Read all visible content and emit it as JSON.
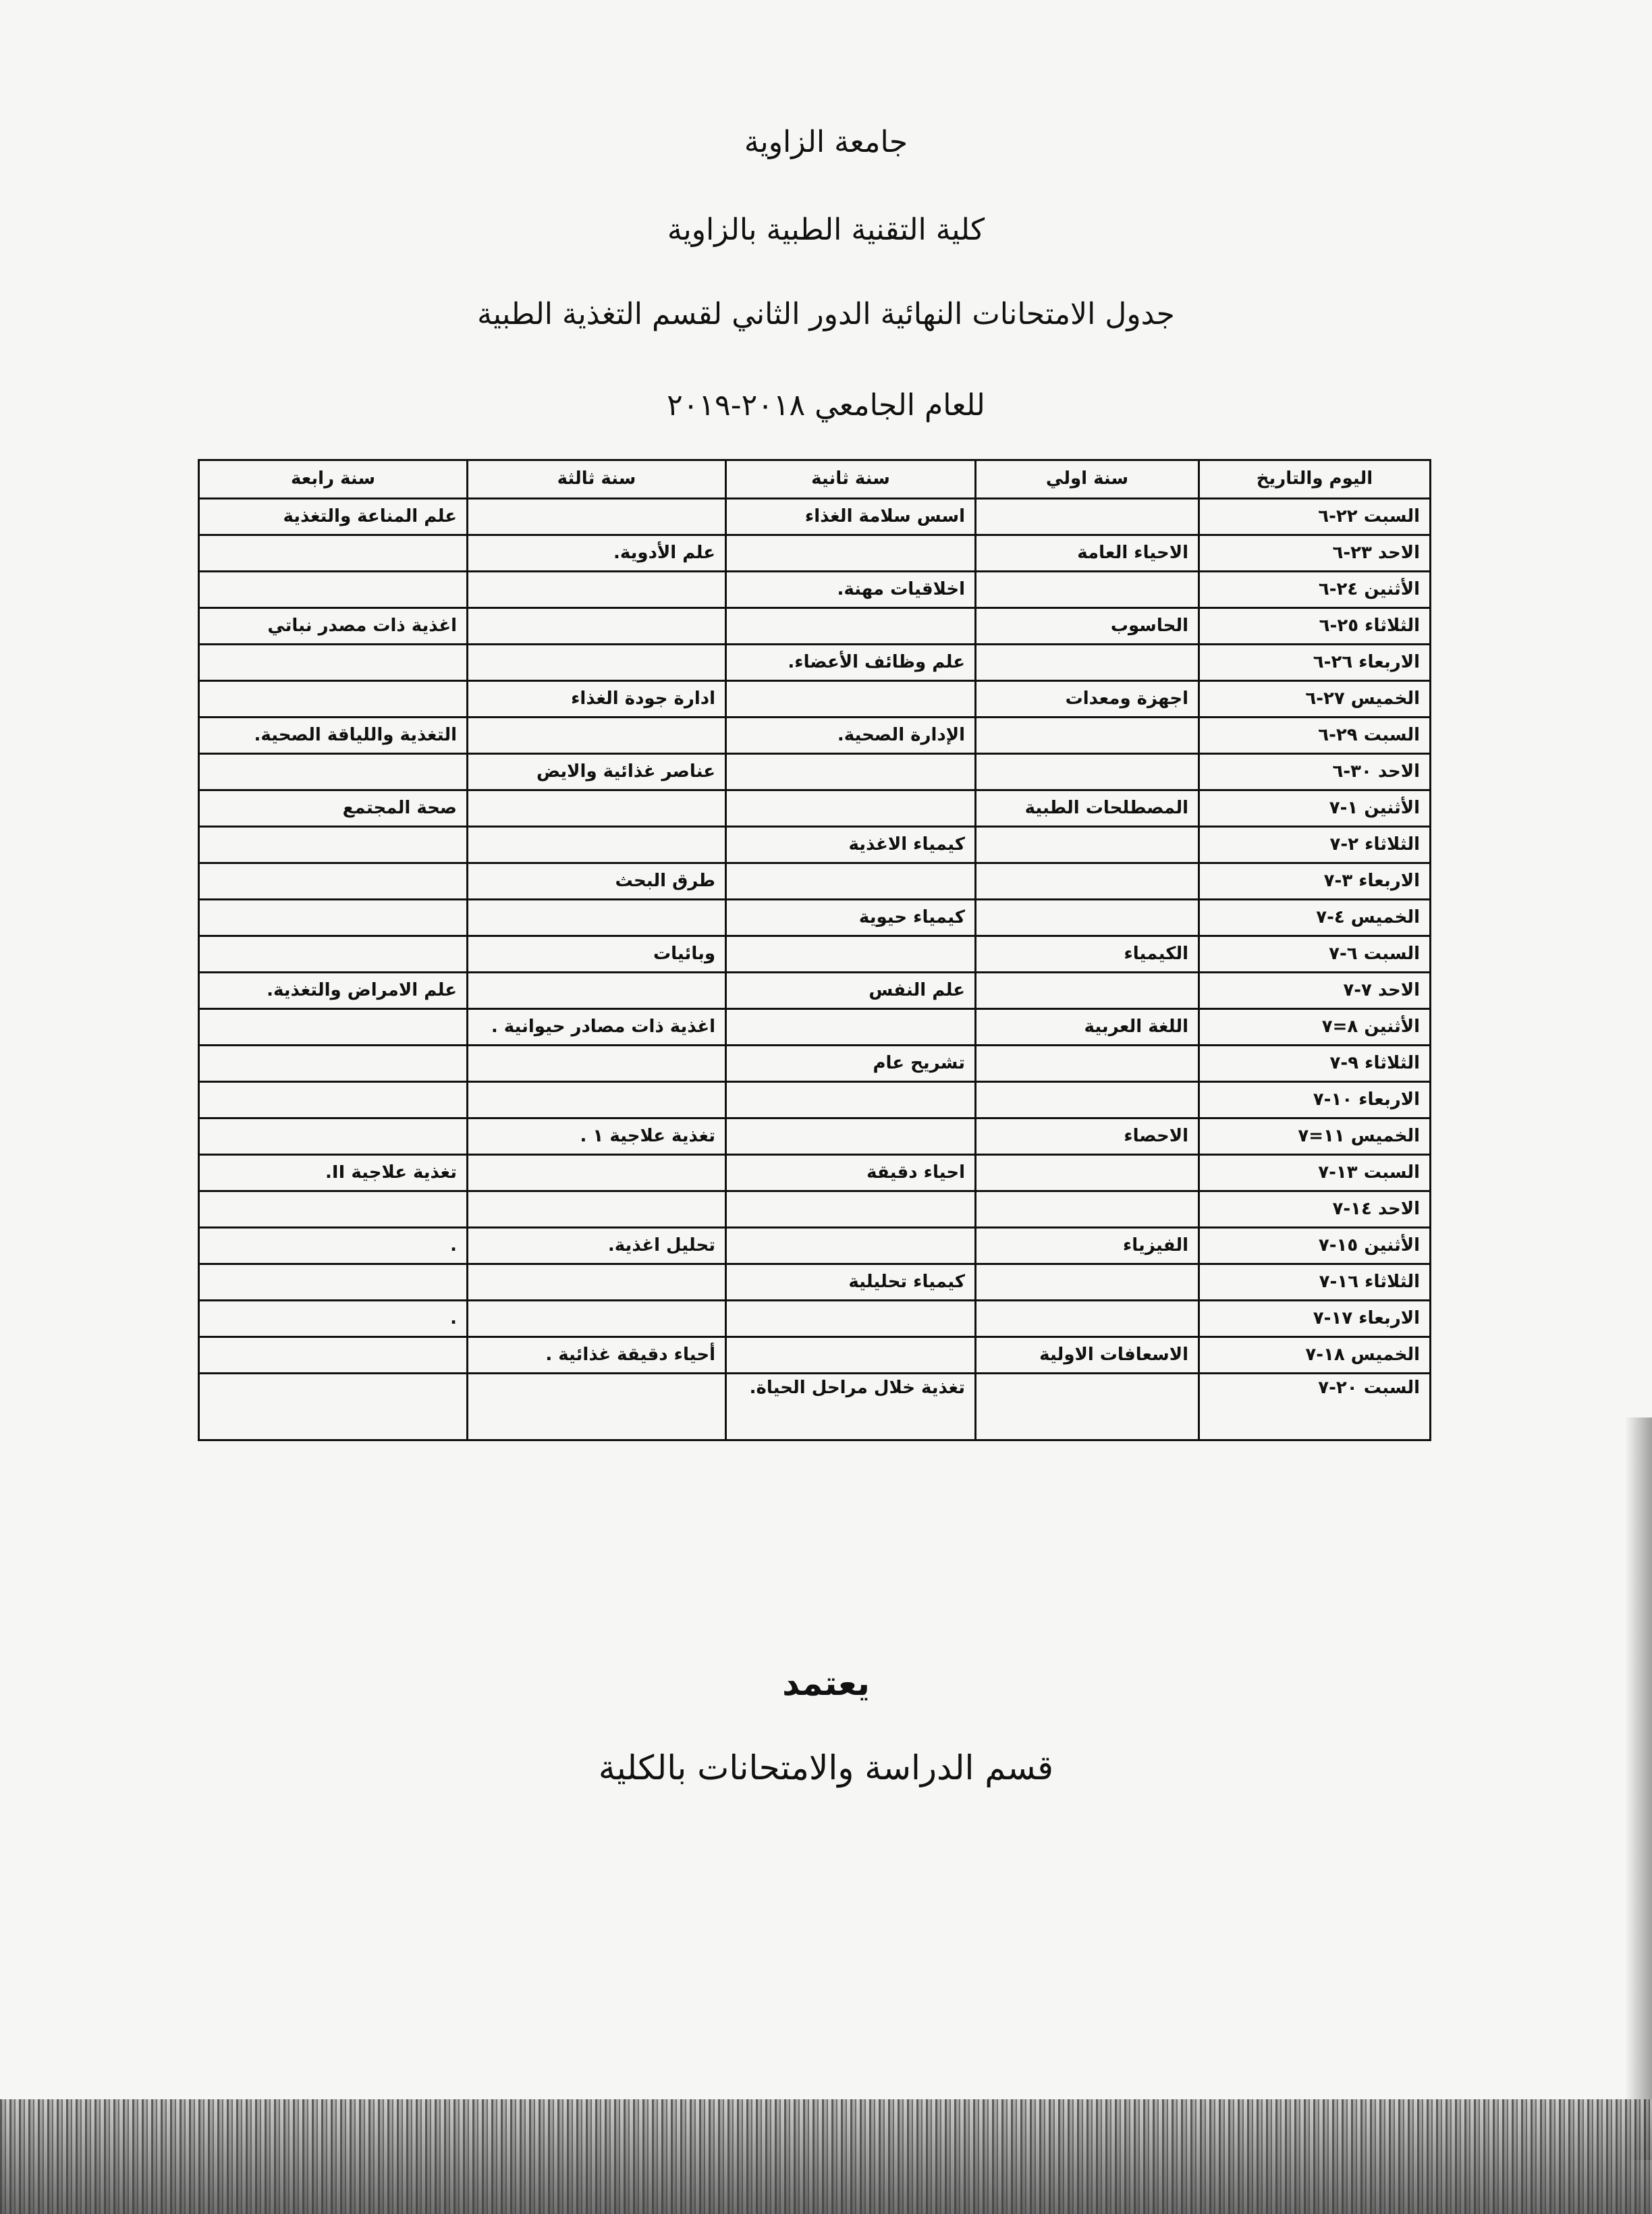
{
  "header": {
    "university": "جامعة الزاوية",
    "college": "كلية التقنية الطبية بالزاوية",
    "schedule_title": "جدول الامتحانات النهائية الدور الثاني لقسم التغذية الطبية",
    "academic_year": "للعام الجامعي ٢٠١٨-٢٠١٩"
  },
  "table": {
    "columns": [
      "اليوم والتاريخ",
      "سنة اولي",
      "سنة ثانية",
      "سنة ثالثة",
      "سنة رابعة"
    ],
    "rows": [
      [
        "السبت ٢٢-٦",
        "",
        "اسس سلامة الغذاء",
        "",
        "علم المناعة والتغذية"
      ],
      [
        "الاحد ٢٣-٦",
        "الاحياء العامة",
        "",
        "علم الأدوية.",
        ""
      ],
      [
        "الأثنين ٢٤-٦",
        "",
        "اخلاقيات مهنة.",
        "",
        ""
      ],
      [
        "الثلاثاء ٢٥-٦",
        "الحاسوب",
        "",
        "",
        "اغذية ذات مصدر نباتي"
      ],
      [
        "الاربعاء ٢٦-٦",
        "",
        "علم وظائف الأعضاء.",
        "",
        ""
      ],
      [
        "الخميس ٢٧-٦",
        "اجهزة ومعدات",
        "",
        "ادارة جودة الغذاء",
        ""
      ],
      [
        "السبت ٢٩-٦",
        "",
        "الإدارة الصحية.",
        "",
        "التغذية واللياقة الصحية."
      ],
      [
        "الاحد ٣٠-٦",
        "",
        "",
        "عناصر غذائية والايض",
        ""
      ],
      [
        "الأثنين ١-٧",
        "المصطلحات الطبية",
        "",
        "",
        "صحة المجتمع"
      ],
      [
        "الثلاثاء ٢-٧",
        "",
        "كيمياء الاغذية",
        "",
        ""
      ],
      [
        "الاربعاء ٣-٧",
        "",
        "",
        "طرق البحث",
        ""
      ],
      [
        "الخميس ٤-٧",
        "",
        "كيمياء حيوية",
        "",
        ""
      ],
      [
        "السبت ٦-٧",
        "الكيمياء",
        "",
        "وبائيات",
        ""
      ],
      [
        "الاحد ٧-٧",
        "",
        "علم النفس",
        "",
        "علم الامراض والتغذية."
      ],
      [
        "الأثنين ٨=٧",
        "اللغة العربية",
        "",
        "اغذية ذات مصادر حيوانية .",
        ""
      ],
      [
        "الثلاثاء ٩-٧",
        "",
        "تشريح عام",
        "",
        ""
      ],
      [
        "الاربعاء ١٠-٧",
        "",
        "",
        "",
        ""
      ],
      [
        "الخميس ١١=٧",
        "الاحصاء",
        "",
        "تغذية علاجية ١ .",
        ""
      ],
      [
        "السبت ١٣-٧",
        "",
        "احياء دقيقة",
        "",
        "تغذية علاجية II."
      ],
      [
        "الاحد ١٤-٧",
        "",
        "",
        "",
        ""
      ],
      [
        "الأثنين ١٥-٧",
        "الفيزياء",
        "",
        "تحليل اغذية.",
        "."
      ],
      [
        "الثلاثاء ١٦-٧",
        "",
        "كيمياء تحليلية",
        "",
        ""
      ],
      [
        "الاربعاء ١٧-٧",
        "",
        "",
        "",
        "."
      ],
      [
        "الخميس ١٨-٧",
        "الاسعافات الاولية",
        "",
        "أحياء دقيقة غذائية .",
        ""
      ],
      [
        "السبت ٢٠-٧",
        "",
        "تغذية خلال مراحل الحياة.",
        "",
        ""
      ]
    ]
  },
  "footer": {
    "approval": "يعتمد",
    "department": "قسم الدراسة والامتحانات بالكلية"
  }
}
